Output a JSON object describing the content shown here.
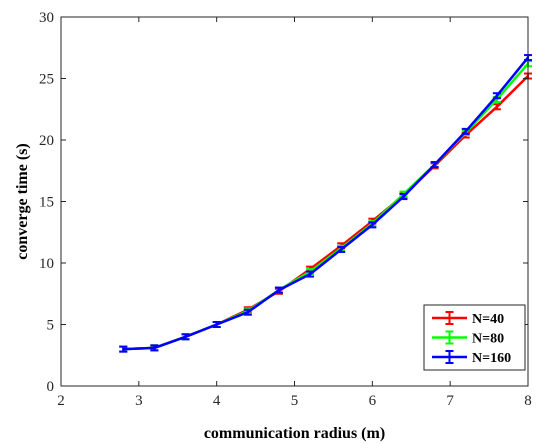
{
  "chart_data": {
    "type": "line",
    "xlabel": "communication radius (m)",
    "ylabel": "converge time (s)",
    "xlim": [
      2,
      8
    ],
    "ylim": [
      0,
      30
    ],
    "xticks": [
      2,
      3,
      4,
      5,
      6,
      7,
      8
    ],
    "yticks": [
      0,
      5,
      10,
      15,
      20,
      25,
      30
    ],
    "grid": false,
    "legend_position": "bottom-right",
    "series": [
      {
        "name": "N=40",
        "color": "#ff0000",
        "x": [
          2.8,
          3.2,
          3.6,
          4.0,
          4.4,
          4.8,
          5.2,
          5.6,
          6.0,
          6.4,
          6.8,
          7.2,
          7.6,
          8.0
        ],
        "y": [
          3.0,
          3.1,
          4.0,
          5.0,
          6.2,
          7.7,
          9.5,
          11.4,
          13.4,
          15.5,
          17.9,
          20.4,
          22.7,
          25.2
        ]
      },
      {
        "name": "N=80",
        "color": "#00ff00",
        "x": [
          2.8,
          3.2,
          3.6,
          4.0,
          4.4,
          4.8,
          5.2,
          5.6,
          6.0,
          6.4,
          6.8,
          7.2,
          7.6,
          8.0
        ],
        "y": [
          3.0,
          3.1,
          4.0,
          5.0,
          6.1,
          7.8,
          9.3,
          11.2,
          13.2,
          15.6,
          18.0,
          20.6,
          23.3,
          26.2
        ]
      },
      {
        "name": "N=160",
        "color": "#0000ff",
        "x": [
          2.8,
          3.2,
          3.6,
          4.0,
          4.4,
          4.8,
          5.2,
          5.6,
          6.0,
          6.4,
          6.8,
          7.2,
          7.6,
          8.0
        ],
        "y": [
          3.0,
          3.1,
          4.0,
          5.0,
          6.0,
          7.8,
          9.1,
          11.1,
          13.1,
          15.4,
          18.0,
          20.7,
          23.6,
          26.7
        ]
      }
    ]
  }
}
